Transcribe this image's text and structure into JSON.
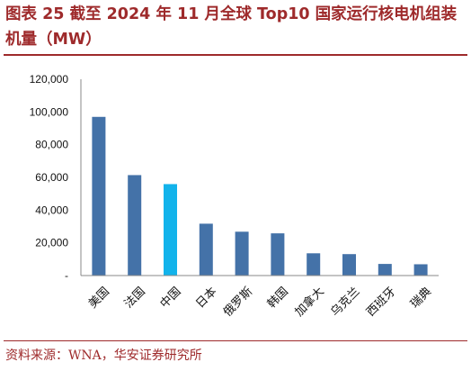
{
  "title": "图表 25 截至 2024 年 11 月全球 Top10 国家运行核电机组装机量（MW）",
  "source": "资料来源：WNA，华安证券研究所",
  "colors": {
    "bar": "#4472a8",
    "highlight": "#12b3eb",
    "title": "#9e2a2b"
  },
  "chart_data": {
    "type": "bar",
    "categories": [
      "美国",
      "法国",
      "中国",
      "日本",
      "俄罗斯",
      "韩国",
      "加拿大",
      "乌克兰",
      "西班牙",
      "瑞典"
    ],
    "values": [
      97000,
      61400,
      55900,
      31700,
      26800,
      25800,
      13600,
      13100,
      7100,
      6900
    ],
    "highlight_category": "中国",
    "y_ticks": [
      "-",
      "20,000",
      "40,000",
      "60,000",
      "80,000",
      "100,000",
      "120,000"
    ],
    "ylim": [
      0,
      120000
    ],
    "grid": false,
    "legend": "none"
  }
}
